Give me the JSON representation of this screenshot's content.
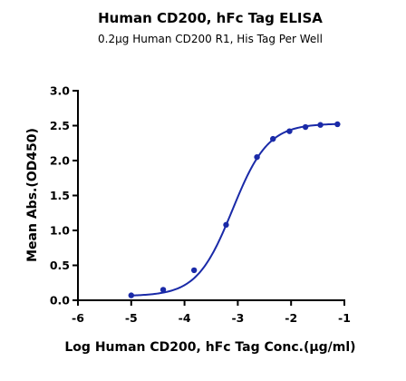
{
  "chart_data": {
    "type": "scatter",
    "title": "Human CD200, hFc Tag ELISA",
    "subtitle": "0.2μg Human CD200 R1, His Tag Per Well",
    "xlabel": "Log Human CD200, hFc Tag Conc.(μg/ml)",
    "ylabel": "Mean Abs.(OD450)",
    "xlim": [
      -6,
      -1
    ],
    "ylim": [
      0,
      3.0
    ],
    "x_ticks": [
      "-6",
      "-5",
      "-4",
      "-3",
      "-2",
      "-1"
    ],
    "y_ticks": [
      "0.0",
      "0.5",
      "1.0",
      "1.5",
      "2.0",
      "2.5",
      "3.0"
    ],
    "grid": false,
    "colors": {
      "series": "#1a2aa8",
      "axis": "#000000"
    },
    "series": [
      {
        "x": [
          -5.0,
          -4.4,
          -3.82,
          -3.22,
          -2.64,
          -2.34,
          -2.03,
          -1.73,
          -1.45,
          -1.13
        ],
        "y": [
          0.07,
          0.15,
          0.43,
          1.08,
          2.05,
          2.31,
          2.42,
          2.48,
          2.51,
          2.52
        ],
        "fit": {
          "model": "4PL",
          "bottom": 0.06,
          "top": 2.53,
          "log_ec50": -3.1,
          "hill": 1.3,
          "x_range": [
            -5.0,
            -1.13
          ]
        }
      }
    ]
  }
}
